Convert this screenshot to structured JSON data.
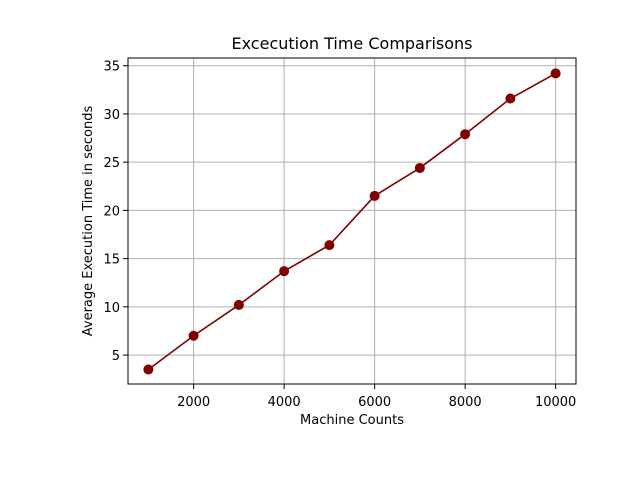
{
  "chart_data": {
    "type": "line",
    "title": "Excecution Time Comparisons",
    "xlabel": "Machine Counts",
    "ylabel": "Average Execution Time in seconds",
    "x": [
      1000,
      2000,
      3000,
      4000,
      5000,
      6000,
      7000,
      8000,
      9000,
      10000
    ],
    "series": [
      {
        "values": [
          3.5,
          7.0,
          10.2,
          13.7,
          16.4,
          21.5,
          24.4,
          27.9,
          31.6,
          34.2
        ]
      }
    ],
    "xlim": [
      550,
      10450
    ],
    "ylim": [
      2.0,
      35.8
    ],
    "x_ticks": [
      2000,
      4000,
      6000,
      8000,
      10000
    ],
    "x_tick_labels": [
      "2000",
      "4000",
      "6000",
      "8000",
      "10000"
    ],
    "y_ticks": [
      5,
      10,
      15,
      20,
      25,
      30,
      35
    ],
    "y_tick_labels": [
      "5",
      "10",
      "15",
      "20",
      "25",
      "30",
      "35"
    ],
    "grid": true,
    "legend": "none",
    "line_color": "#800000",
    "marker": "circle"
  }
}
